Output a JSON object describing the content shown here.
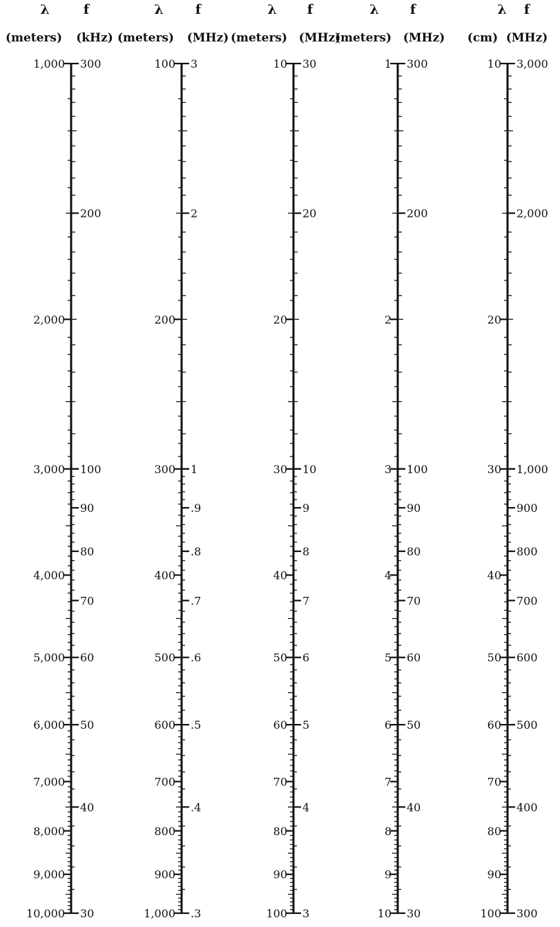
{
  "scales": [
    {
      "id": "scale-1",
      "lambda_symbol": "λ",
      "f_symbol": "f",
      "lambda_unit": "(meters)",
      "f_unit": "(kHz)",
      "lambda_labels": [
        "1,000",
        "2,000",
        "3,000",
        "4,000",
        "5,000",
        "6,000",
        "7,000",
        "8,000",
        "9,000",
        "10,000"
      ],
      "f_labels": [
        "300",
        "200",
        "100",
        "90",
        "80",
        "70",
        "60",
        "50",
        "40",
        "30"
      ]
    },
    {
      "id": "scale-2",
      "lambda_symbol": "λ",
      "f_symbol": "f",
      "lambda_unit": "(meters)",
      "f_unit": "(MHz)",
      "lambda_labels": [
        "100",
        "200",
        "300",
        "400",
        "500",
        "600",
        "700",
        "800",
        "900",
        "1,000"
      ],
      "f_labels": [
        "3",
        "2",
        "1",
        ".9",
        ".8",
        ".7",
        ".6",
        ".5",
        ".4",
        ".3"
      ]
    },
    {
      "id": "scale-3",
      "lambda_symbol": "λ",
      "f_symbol": "f",
      "lambda_unit": "(meters)",
      "f_unit": "(MHz)",
      "lambda_labels": [
        "10",
        "20",
        "30",
        "40",
        "50",
        "60",
        "70",
        "80",
        "90",
        "100"
      ],
      "f_labels": [
        "30",
        "20",
        "10",
        "9",
        "8",
        "7",
        "6",
        "5",
        "4",
        "3"
      ]
    },
    {
      "id": "scale-4",
      "lambda_symbol": "λ",
      "f_symbol": "f",
      "lambda_unit": "(meters)",
      "f_unit": "(MHz)",
      "lambda_labels": [
        "1",
        "2",
        "3",
        "4",
        "5",
        "6",
        "7",
        "8",
        "9",
        "10"
      ],
      "f_labels": [
        "300",
        "200",
        "100",
        "90",
        "80",
        "70",
        "60",
        "50",
        "40",
        "30"
      ]
    },
    {
      "id": "scale-5",
      "lambda_symbol": "λ",
      "f_symbol": "f",
      "lambda_unit": "(cm)",
      "f_unit": "(MHz)",
      "lambda_labels": [
        "10",
        "20",
        "30",
        "40",
        "50",
        "60",
        "70",
        "80",
        "90",
        "100"
      ],
      "f_labels": [
        "3,000",
        "2,000",
        "1,000",
        "900",
        "800",
        "700",
        "600",
        "500",
        "400",
        "300"
      ]
    }
  ]
}
